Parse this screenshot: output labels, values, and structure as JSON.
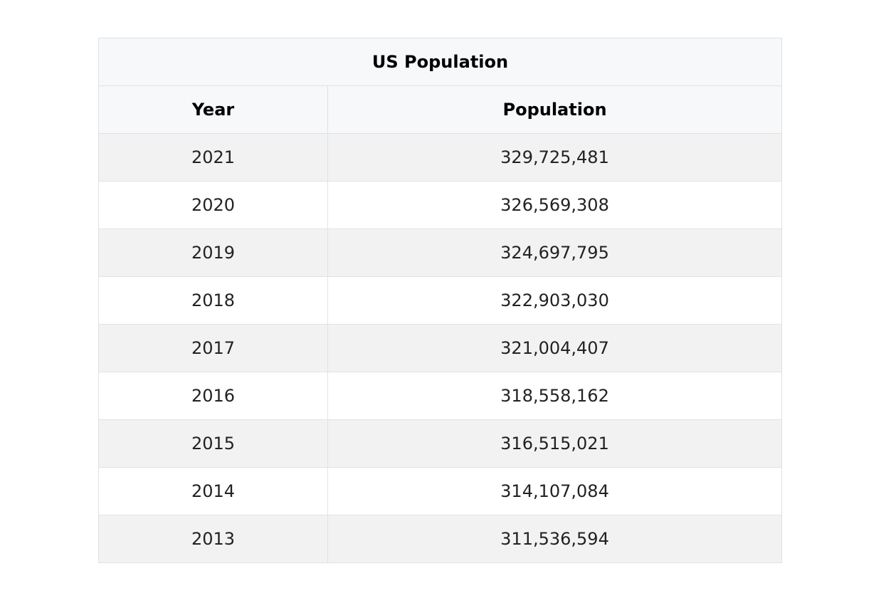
{
  "table": {
    "title": "US Population",
    "columns": [
      "Year",
      "Population"
    ],
    "rows": [
      {
        "year": "2021",
        "population": "329,725,481"
      },
      {
        "year": "2020",
        "population": "326,569,308"
      },
      {
        "year": "2019",
        "population": "324,697,795"
      },
      {
        "year": "2018",
        "population": "322,903,030"
      },
      {
        "year": "2017",
        "population": "321,004,407"
      },
      {
        "year": "2016",
        "population": "318,558,162"
      },
      {
        "year": "2015",
        "population": "316,515,021"
      },
      {
        "year": "2014",
        "population": "314,107,084"
      },
      {
        "year": "2013",
        "population": "311,536,594"
      }
    ]
  },
  "colors": {
    "header_bg": "#f6f8fa",
    "stripe_bg": "#f2f2f2",
    "border": "#dfe2e5"
  }
}
